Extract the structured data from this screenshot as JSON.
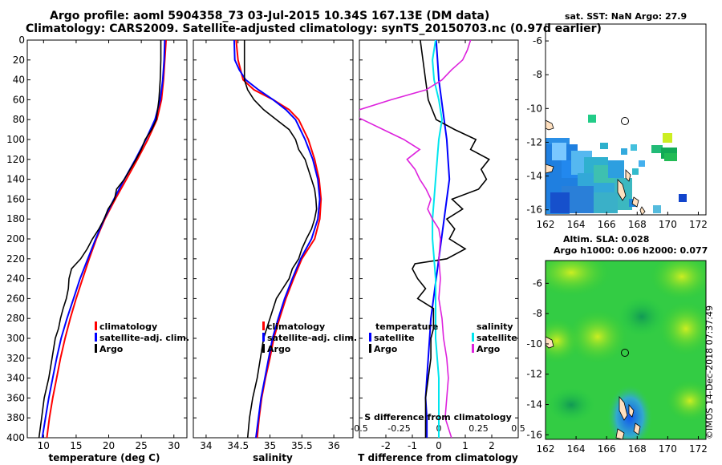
{
  "title": {
    "line1": "Argo profile: aoml 5904358_73 03-Jul-2015 10.34S 167.13E (DM data)",
    "line2": "Climatology: CARS2009. Satellite-adjusted climatology: synTS_20150703.nc (0.97d earlier)"
  },
  "credit": "©IMOS 14-Dec-2018 07:37:49",
  "colors": {
    "climatology": "#ff0000",
    "satellite": "#0000ff",
    "argo": "#000000",
    "salinity_diff": "#dd22dd",
    "salinity_sat": "#00e5ee"
  },
  "chart_data": [
    {
      "type": "line",
      "id": "temperature",
      "xlabel": "temperature (deg C)",
      "ylabel": "depth",
      "xlim": [
        7.5,
        32
      ],
      "ylim": [
        400,
        0
      ],
      "xticks": [
        10,
        15,
        20,
        25,
        30
      ],
      "yticks": [
        0,
        20,
        40,
        60,
        80,
        100,
        120,
        140,
        160,
        180,
        200,
        220,
        240,
        260,
        280,
        300,
        320,
        340,
        360,
        380,
        400
      ],
      "legend": [
        "climatology",
        "satellite-adj. clim.",
        "Argo"
      ],
      "legend_position": "lower-right",
      "series": [
        {
          "name": "climatology",
          "color": "#ff0000",
          "depth": [
            0,
            20,
            40,
            60,
            80,
            100,
            120,
            140,
            160,
            180,
            200,
            220,
            240,
            260,
            280,
            300,
            320,
            340,
            360,
            380,
            400
          ],
          "values": [
            28.8,
            28.6,
            28.4,
            28.1,
            27.4,
            26.0,
            24.4,
            22.7,
            21.0,
            19.4,
            18.1,
            17.0,
            16.0,
            15.0,
            14.1,
            13.3,
            12.6,
            12.0,
            11.4,
            10.9,
            10.5
          ]
        },
        {
          "name": "satellite-adj. clim.",
          "color": "#0000ff",
          "depth": [
            0,
            20,
            40,
            60,
            80,
            100,
            120,
            140,
            160,
            180,
            200,
            220,
            240,
            260,
            280,
            300,
            320,
            340,
            360,
            380,
            400
          ],
          "values": [
            28.6,
            28.5,
            28.3,
            27.9,
            27.1,
            25.7,
            24.1,
            22.4,
            20.8,
            19.3,
            18.0,
            16.8,
            15.6,
            14.6,
            13.6,
            12.7,
            12.0,
            11.4,
            10.8,
            10.3,
            9.8
          ]
        },
        {
          "name": "Argo",
          "color": "#000000",
          "depth": [
            0,
            20,
            40,
            60,
            80,
            90,
            100,
            110,
            120,
            130,
            140,
            150,
            160,
            170,
            180,
            190,
            200,
            210,
            220,
            225,
            230,
            240,
            250,
            260,
            270,
            280,
            290,
            300,
            320,
            340,
            360,
            380,
            400
          ],
          "values": [
            28.0,
            28.0,
            27.9,
            27.7,
            27.3,
            26.6,
            25.6,
            25.0,
            24.2,
            23.3,
            22.4,
            21.2,
            20.9,
            19.9,
            19.3,
            18.5,
            17.5,
            16.7,
            15.7,
            15.0,
            14.3,
            13.9,
            13.8,
            13.5,
            13.0,
            12.6,
            12.3,
            11.8,
            11.3,
            10.8,
            10.1,
            9.7,
            9.3
          ]
        }
      ]
    },
    {
      "type": "line",
      "id": "salinity",
      "xlabel": "salinity",
      "xlim": [
        33.8,
        36.3
      ],
      "ylim": [
        400,
        0
      ],
      "xticks": [
        34,
        34.5,
        35,
        35.5,
        36
      ],
      "legend": [
        "climatology",
        "satellite-adj. clim.",
        "Argo"
      ],
      "legend_position": "lower-right",
      "series": [
        {
          "name": "climatology",
          "color": "#ff0000",
          "depth": [
            0,
            20,
            40,
            50,
            60,
            70,
            80,
            100,
            120,
            140,
            160,
            180,
            200,
            220,
            240,
            260,
            280,
            300,
            320,
            340,
            360,
            380,
            400
          ],
          "values": [
            34.47,
            34.5,
            34.58,
            34.75,
            35.05,
            35.3,
            35.45,
            35.6,
            35.7,
            35.77,
            35.8,
            35.78,
            35.7,
            35.5,
            35.37,
            35.25,
            35.15,
            35.06,
            35.0,
            34.93,
            34.87,
            34.83,
            34.8
          ]
        },
        {
          "name": "satellite-adj. clim.",
          "color": "#0000ff",
          "depth": [
            0,
            20,
            30,
            40,
            50,
            60,
            70,
            80,
            100,
            120,
            140,
            160,
            180,
            200,
            220,
            240,
            260,
            280,
            300,
            320,
            340,
            360,
            380,
            400
          ],
          "values": [
            34.44,
            34.45,
            34.52,
            34.62,
            34.82,
            35.05,
            35.25,
            35.4,
            35.55,
            35.67,
            35.75,
            35.78,
            35.75,
            35.65,
            35.48,
            35.35,
            35.23,
            35.13,
            35.04,
            34.98,
            34.92,
            34.86,
            34.82,
            34.78
          ]
        },
        {
          "name": "Argo",
          "color": "#000000",
          "depth": [
            0,
            20,
            40,
            50,
            60,
            70,
            80,
            90,
            100,
            110,
            120,
            130,
            140,
            150,
            160,
            170,
            180,
            190,
            200,
            210,
            220,
            230,
            240,
            250,
            260,
            270,
            280,
            290,
            300,
            320,
            340,
            360,
            380,
            400
          ],
          "values": [
            34.6,
            34.6,
            34.6,
            34.65,
            34.75,
            34.9,
            35.1,
            35.3,
            35.4,
            35.45,
            35.55,
            35.6,
            35.65,
            35.7,
            35.72,
            35.73,
            35.7,
            35.65,
            35.57,
            35.5,
            35.45,
            35.35,
            35.3,
            35.2,
            35.1,
            35.05,
            35.0,
            34.95,
            34.9,
            34.85,
            34.8,
            34.73,
            34.68,
            34.65
          ]
        }
      ]
    },
    {
      "type": "line",
      "id": "difference",
      "xlabel": "T difference from climatology",
      "top_xlabel": "S difference  from climatology",
      "xlim": [
        -3,
        3
      ],
      "ylim": [
        400,
        0
      ],
      "xticks": [
        -2,
        -1,
        0,
        1,
        2
      ],
      "top_xticks": [
        -0.5,
        -0.25,
        0,
        0.25,
        0.5
      ],
      "top_xtick_labels": [
        "-0.5",
        "-0.25",
        "0",
        "0.25",
        "0.5"
      ],
      "legend_temperature": {
        "title": "temperature",
        "items": [
          "satellite",
          "Argo"
        ]
      },
      "legend_salinity": {
        "title": "salinity",
        "items": [
          "satellite",
          "Argo"
        ]
      },
      "series": [
        {
          "name": "temperature satellite",
          "color": "#0000ff",
          "depth": [
            0,
            20,
            40,
            60,
            80,
            100,
            120,
            140,
            160,
            180,
            200,
            220,
            240,
            260,
            280,
            300,
            320,
            340,
            360,
            380,
            400
          ],
          "values": [
            -0.1,
            -0.05,
            0.0,
            0.1,
            0.2,
            0.3,
            0.35,
            0.4,
            0.3,
            0.2,
            0.1,
            0.0,
            -0.1,
            -0.2,
            -0.3,
            -0.35,
            -0.4,
            -0.45,
            -0.5,
            -0.45,
            -0.45
          ]
        },
        {
          "name": "temperature Argo",
          "color": "#000000",
          "depth": [
            0,
            20,
            40,
            60,
            80,
            90,
            100,
            110,
            120,
            130,
            140,
            150,
            160,
            170,
            180,
            190,
            200,
            210,
            220,
            225,
            230,
            240,
            250,
            260,
            270,
            280,
            290,
            300,
            320,
            340,
            360,
            380,
            400
          ],
          "values": [
            -0.7,
            -0.6,
            -0.5,
            -0.4,
            -0.1,
            0.6,
            1.4,
            1.2,
            1.9,
            1.6,
            1.8,
            1.5,
            0.5,
            0.9,
            0.3,
            0.6,
            0.4,
            1.0,
            0.3,
            -0.9,
            -1.0,
            -0.8,
            -0.5,
            -0.8,
            -0.2,
            -0.2,
            -0.2,
            -0.3,
            -0.3,
            -0.4,
            -0.5,
            -0.5,
            -0.5
          ]
        },
        {
          "name": "salinity satellite",
          "color": "#00e5ee",
          "depth": [
            0,
            20,
            40,
            60,
            80,
            100,
            120,
            140,
            160,
            180,
            200,
            220,
            240,
            260,
            280,
            300,
            320,
            340,
            360,
            380,
            400
          ],
          "values": [
            -0.02,
            -0.04,
            -0.03,
            0.0,
            0.02,
            0.0,
            -0.01,
            -0.02,
            -0.03,
            -0.04,
            -0.04,
            -0.03,
            -0.02,
            -0.02,
            -0.02,
            -0.02,
            -0.01,
            0.0,
            0.0,
            0.0,
            0.0
          ]
        },
        {
          "name": "salinity Argo",
          "color": "#dd22dd",
          "depth": [
            0,
            10,
            20,
            30,
            40,
            50,
            60,
            70,
            75,
            80,
            90,
            100,
            110,
            120,
            130,
            140,
            150,
            160,
            170,
            180,
            190,
            200,
            220,
            240,
            260,
            280,
            300,
            320,
            340,
            360,
            380,
            400
          ],
          "values": [
            0.2,
            0.18,
            0.15,
            0.08,
            0.02,
            -0.08,
            -0.3,
            -0.5,
            -0.55,
            -0.48,
            -0.35,
            -0.22,
            -0.12,
            -0.2,
            -0.15,
            -0.12,
            -0.08,
            -0.05,
            -0.07,
            -0.04,
            0.0,
            0.01,
            0.0,
            0.01,
            0.0,
            0.02,
            0.03,
            0.05,
            0.06,
            0.05,
            0.04,
            0.08
          ]
        }
      ]
    },
    {
      "type": "heatmap",
      "id": "sst-map",
      "title": "sat. SST: NaN Argo: 27.9",
      "xlim": [
        162,
        172.5
      ],
      "ylim": [
        -16.3,
        -5
      ],
      "xticks": [
        162,
        164,
        166,
        168,
        170,
        172
      ],
      "yticks": [
        -6,
        -8,
        -10,
        -12,
        -14,
        -16
      ],
      "argo_position": {
        "lon": 167.13,
        "lat": -10.34
      }
    },
    {
      "type": "heatmap",
      "id": "sla-map",
      "title": "Altim. SLA: 0.028",
      "subtitle": "Argo h1000: 0.06 h2000: 0.077",
      "xlim": [
        162,
        172.5
      ],
      "ylim": [
        -16.3,
        -4.5
      ],
      "xticks": [
        162,
        164,
        166,
        168,
        170,
        172
      ],
      "yticks": [
        -6,
        -8,
        -10,
        -12,
        -14,
        -16
      ],
      "argo_position": {
        "lon": 167.13,
        "lat": -10.34
      }
    }
  ]
}
